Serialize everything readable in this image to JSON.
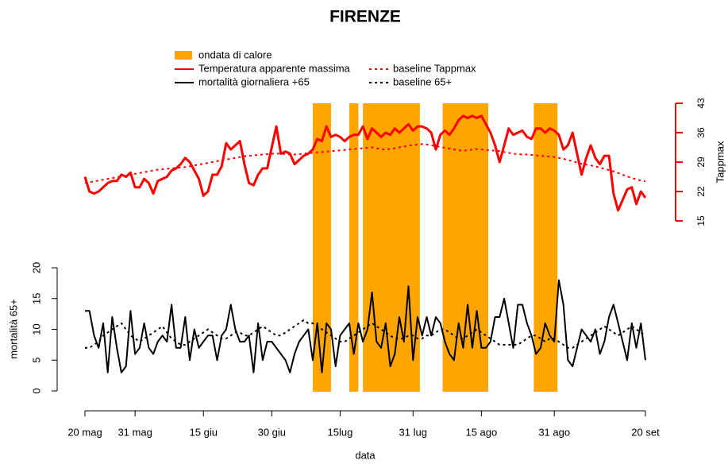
{
  "chart_data": {
    "type": "line",
    "title": "FIRENZE",
    "x_label": "data",
    "y_label": "mortalità 65+",
    "y2_label": "Tappmax",
    "xlim": [
      0,
      123
    ],
    "xticks": [
      {
        "value": 0,
        "label": "20 mag"
      },
      {
        "value": 11,
        "label": "31 mag"
      },
      {
        "value": 26,
        "label": "15 giu"
      },
      {
        "value": 41,
        "label": "30 giu"
      },
      {
        "value": 56,
        "label": "15lug"
      },
      {
        "value": 72,
        "label": "31 lug"
      },
      {
        "value": 87,
        "label": "15 ago"
      },
      {
        "value": 103,
        "label": "31 ago"
      },
      {
        "value": 123,
        "label": "20 set"
      }
    ],
    "ylim": [
      0,
      20
    ],
    "yticks": [
      0,
      5,
      10,
      15,
      20
    ],
    "y2lim": [
      15,
      43
    ],
    "y2ticks": [
      15,
      22,
      29,
      36,
      43
    ],
    "heatwaves": {
      "name": "ondata di calore",
      "color": "#ffa500",
      "intervals": [
        [
          50,
          54
        ],
        [
          58,
          60
        ],
        [
          61,
          73.5
        ],
        [
          78.5,
          88.5
        ],
        [
          98.5,
          103.7
        ]
      ]
    },
    "x": [
      0,
      1,
      2,
      3,
      4,
      5,
      6,
      7,
      8,
      9,
      10,
      11,
      12,
      13,
      14,
      15,
      16,
      17,
      18,
      19,
      20,
      21,
      22,
      23,
      24,
      25,
      26,
      27,
      28,
      29,
      30,
      31,
      32,
      33,
      34,
      35,
      36,
      37,
      38,
      39,
      40,
      41,
      42,
      43,
      44,
      45,
      46,
      47,
      48,
      49,
      50,
      51,
      52,
      53,
      54,
      55,
      56,
      57,
      58,
      59,
      60,
      61,
      62,
      63,
      64,
      65,
      66,
      67,
      68,
      69,
      70,
      71,
      72,
      73,
      74,
      75,
      76,
      77,
      78,
      79,
      80,
      81,
      82,
      83,
      84,
      85,
      86,
      87,
      88,
      89,
      90,
      91,
      92,
      93,
      94,
      95,
      96,
      97,
      98,
      99,
      100,
      101,
      102,
      103,
      104,
      105,
      106,
      107,
      108,
      109,
      110,
      111,
      112,
      113,
      114,
      115,
      116,
      117,
      118,
      119,
      120,
      121,
      122,
      123
    ],
    "series": [
      {
        "name": "Temperatura apparente massima",
        "color": "#ff0000",
        "dash": "solid",
        "axis": "y2",
        "values": [
          25.5,
          22,
          21.5,
          22,
          23,
          24,
          24.5,
          24.5,
          26,
          25.5,
          26.5,
          23,
          23,
          25,
          24,
          21.5,
          24.5,
          25,
          25.5,
          27,
          27.5,
          28.5,
          30,
          29,
          27,
          25,
          21,
          22,
          26,
          26,
          28,
          33.5,
          32,
          33,
          34,
          28.5,
          24,
          23.5,
          26,
          27.5,
          27.5,
          32.5,
          37.5,
          31,
          31.5,
          31,
          28.5,
          29.5,
          30.5,
          31,
          32,
          34.5,
          34,
          37.5,
          35,
          35.5,
          35,
          34,
          35,
          35.5,
          35.5,
          37.5,
          34.5,
          37,
          36,
          35,
          36,
          35.5,
          37,
          36,
          37,
          38,
          36.5,
          37.5,
          37.5,
          37,
          36,
          32,
          35.5,
          36.5,
          35.5,
          37,
          39,
          40,
          39.5,
          40,
          39.5,
          40,
          38,
          36,
          33,
          29,
          33,
          37,
          35.5,
          36,
          36.5,
          35,
          34.5,
          37,
          37,
          36,
          37,
          36.5,
          35.5,
          32,
          33,
          36,
          31,
          26,
          30,
          33,
          30,
          28.5,
          30.5,
          30.5,
          21.5,
          17.5,
          20,
          22.5,
          23,
          19,
          22,
          20.5
        ]
      },
      {
        "name": "mortalità giornaliera +65",
        "color": "#000000",
        "dash": "solid",
        "axis": "y",
        "values": [
          13,
          13,
          9,
          7,
          11,
          3,
          12,
          7,
          3,
          4,
          13,
          6,
          7,
          11,
          7,
          6,
          8,
          9,
          8,
          14,
          7,
          7,
          12,
          5,
          10,
          7,
          8,
          9,
          9,
          5,
          9,
          10,
          14,
          10,
          8,
          8,
          9,
          3,
          11,
          5,
          8,
          8,
          7,
          6,
          5,
          3,
          6,
          8,
          9,
          10,
          5,
          11,
          3,
          11,
          10,
          4,
          9,
          10,
          11,
          6,
          11,
          8,
          10,
          16,
          8,
          7,
          11,
          4,
          6,
          12,
          8,
          17,
          5,
          12,
          9,
          12,
          9,
          12,
          11,
          8,
          6,
          5,
          11,
          7,
          14,
          7,
          13,
          7,
          7,
          8,
          12,
          12,
          15,
          11,
          7,
          14,
          14,
          11,
          9,
          6,
          7,
          11,
          9,
          8,
          18,
          14,
          5,
          4,
          7,
          10,
          9,
          8,
          10,
          6,
          8,
          12,
          14,
          11,
          8,
          5,
          11,
          7,
          11,
          5
        ]
      },
      {
        "name": "baseline Tappmax",
        "color": "#ff0000",
        "dash": "dotted",
        "axis": "y2",
        "values": [
          24,
          24.2,
          24.4,
          24.6,
          24.8,
          25,
          25.2,
          25.4,
          25.6,
          25.8,
          26,
          26.2,
          26.4,
          26.6,
          26.8,
          27,
          27.2,
          27.3,
          27.4,
          27.5,
          27.6,
          27.7,
          27.8,
          28,
          28.2,
          28.4,
          28.6,
          28.8,
          29,
          29.2,
          29.4,
          29.6,
          29.8,
          30,
          30.2,
          30.4,
          30.5,
          30.6,
          30.7,
          30.8,
          30.9,
          31,
          31,
          31,
          30.9,
          30.8,
          30.8,
          30.9,
          31,
          31.1,
          31.2,
          31.3,
          31.4,
          31.5,
          31.6,
          31.7,
          31.8,
          31.9,
          32,
          32.1,
          32.2,
          32.3,
          32.4,
          32.5,
          32.3,
          32.1,
          32,
          32.1,
          32.3,
          32.5,
          32.7,
          32.9,
          33,
          33.2,
          33.3,
          33.2,
          33,
          32.8,
          32.6,
          32.4,
          32.2,
          32,
          31.8,
          31.7,
          31.8,
          32,
          32.1,
          32,
          31.9,
          31.8,
          31.7,
          31.6,
          31.4,
          31.2,
          31,
          30.9,
          30.8,
          30.8,
          30.7,
          30.6,
          30.5,
          30.4,
          30.3,
          30.2,
          30,
          29.8,
          29.5,
          29.2,
          28.9,
          28.6,
          28.4,
          28.2,
          28,
          27.7,
          27.4,
          27.1,
          26.8,
          26.4,
          26,
          25.6,
          25.2,
          24.9,
          24.6,
          24.4
        ]
      },
      {
        "name": "baseline 65+",
        "color": "#000000",
        "dash": "dotted",
        "axis": "y",
        "values": [
          7,
          7,
          7.5,
          8,
          9,
          9.5,
          10,
          10.5,
          11,
          10,
          9,
          8.5,
          8,
          8.5,
          9,
          9.5,
          10,
          10.5,
          9.5,
          8.5,
          8,
          7.5,
          7.5,
          8,
          8.5,
          9,
          9.5,
          10,
          9.5,
          9,
          8.5,
          8.5,
          9,
          9.5,
          9.5,
          9,
          9,
          9.5,
          10,
          10.5,
          10,
          9.5,
          9,
          9,
          9.5,
          10,
          10.5,
          11,
          11.5,
          11,
          11,
          10.5,
          10,
          9.5,
          9,
          8.5,
          8,
          8,
          8.5,
          9,
          9.5,
          10,
          10.5,
          11,
          10.5,
          10,
          9.5,
          9,
          8.5,
          8.5,
          8.5,
          9,
          9,
          8.5,
          8.5,
          9,
          9,
          9.5,
          10,
          10,
          9.5,
          9,
          8.5,
          8.5,
          9,
          9.5,
          10,
          9.5,
          9,
          8.5,
          8,
          7.5,
          7.5,
          7.5,
          7.5,
          7.5,
          8,
          8.5,
          9,
          9,
          8.5,
          8,
          8.5,
          8.5,
          8,
          7.5,
          7,
          7,
          7.5,
          8,
          8.5,
          9,
          9.5,
          10,
          10.5,
          10,
          9.5,
          9,
          9.5,
          10,
          10.5,
          10,
          9.5,
          9
        ]
      }
    ]
  }
}
